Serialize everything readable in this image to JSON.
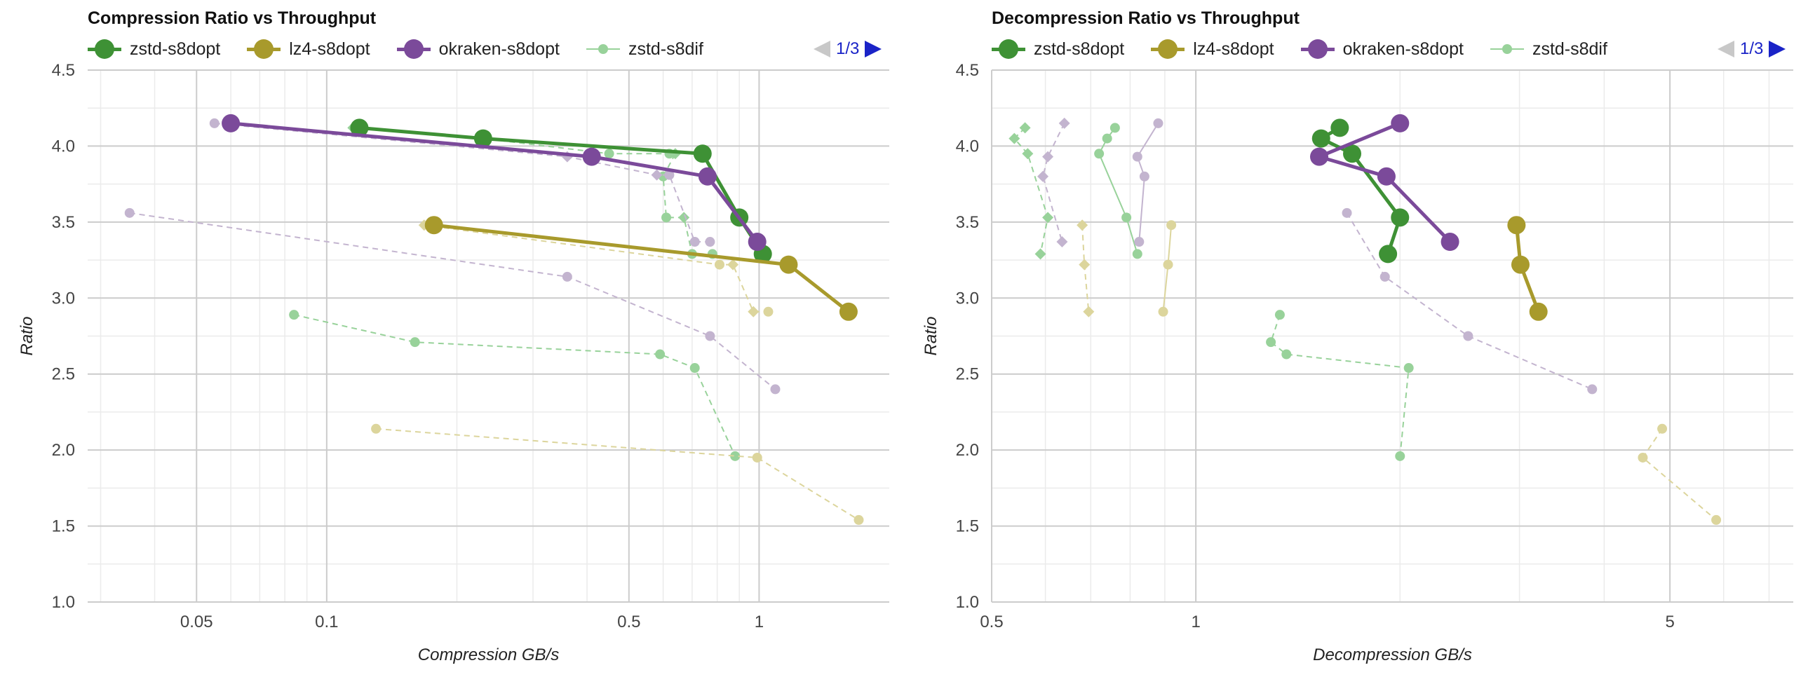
{
  "colors": {
    "zstd_opt": "#3e9135",
    "lz4_opt": "#a89a2c",
    "okraken_opt": "#7b4a9a",
    "zstd_dif": "#98d29a",
    "lz4_dif": "#dcd59c",
    "okraken_dif": "#c3b4cf",
    "grid_major": "#cccccc",
    "grid_minor": "#ebebeb",
    "pager_active": "#1a23c7",
    "pager_inactive": "#c8c8c8"
  },
  "pager_text": "1/3",
  "chart_data": [
    {
      "type": "scatter",
      "title": "Compression Ratio vs Throughput",
      "xlabel": "Compression GB/s",
      "ylabel": "Ratio",
      "xscale": "log",
      "xlim": [
        0.028,
        2.0
      ],
      "ylim": [
        1.0,
        4.5
      ],
      "x_ticks": [
        "0.05",
        "0.1",
        "0.5",
        "1"
      ],
      "x_tick_values": [
        0.05,
        0.1,
        0.5,
        1
      ],
      "y_ticks": [
        "1.0",
        "1.5",
        "2.0",
        "2.5",
        "3.0",
        "3.5",
        "4.0",
        "4.5"
      ],
      "y_tick_values": [
        1.0,
        1.5,
        2.0,
        2.5,
        3.0,
        3.5,
        4.0,
        4.5
      ],
      "legend": [
        "zstd-s8dopt",
        "lz4-s8dopt",
        "okraken-s8dopt",
        "zstd-s8dif"
      ],
      "legend_position": "top",
      "series": [
        {
          "name": "zstd-s8dif",
          "points": [
            [
              0.084,
              2.89
            ],
            [
              0.16,
              2.71
            ],
            [
              0.59,
              2.63
            ],
            [
              0.71,
              2.54
            ],
            [
              0.88,
              1.96
            ]
          ]
        },
        {
          "points": [
            [
              0.13,
              2.14
            ],
            [
              0.99,
              1.95
            ],
            [
              1.7,
              1.54
            ]
          ]
        },
        {
          "points": [
            [
              0.035,
              3.56
            ],
            [
              0.36,
              3.14
            ],
            [
              0.77,
              2.75
            ],
            [
              1.09,
              2.4
            ]
          ]
        },
        {
          "points": [
            [
              0.115,
              4.12
            ],
            [
              0.23,
              4.05
            ],
            [
              0.45,
              3.95
            ],
            [
              0.62,
              3.95
            ],
            [
              0.64,
              3.95
            ],
            [
              0.6,
              3.8
            ],
            [
              0.61,
              3.53
            ],
            [
              0.67,
              3.53
            ],
            [
              0.7,
              3.29
            ],
            [
              0.78,
              3.29
            ]
          ]
        },
        {
          "points": [
            [
              0.168,
              3.48
            ],
            [
              0.81,
              3.22
            ],
            [
              0.87,
              3.22
            ],
            [
              0.97,
              2.91
            ],
            [
              1.05,
              2.91
            ]
          ]
        },
        {
          "points": [
            [
              0.055,
              4.15
            ],
            [
              0.36,
              3.93
            ],
            [
              0.58,
              3.81
            ],
            [
              0.62,
              3.81
            ],
            [
              0.71,
              3.37
            ],
            [
              0.77,
              3.37
            ]
          ]
        },
        {
          "name": "zstd-s8dopt",
          "points": [
            [
              0.119,
              4.12
            ],
            [
              0.23,
              4.05
            ],
            [
              0.74,
              3.95
            ],
            [
              0.9,
              3.53
            ],
            [
              1.02,
              3.29
            ]
          ]
        },
        {
          "name": "lz4-s8dopt",
          "points": [
            [
              0.177,
              3.48
            ],
            [
              1.17,
              3.22
            ],
            [
              1.61,
              2.91
            ]
          ]
        },
        {
          "name": "okraken-s8dopt",
          "points": [
            [
              0.06,
              4.15
            ],
            [
              0.41,
              3.93
            ],
            [
              0.76,
              3.8
            ],
            [
              0.99,
              3.37
            ]
          ]
        }
      ]
    },
    {
      "type": "scatter",
      "title": "Decompression Ratio vs Throughput",
      "xlabel": "Decompression GB/s",
      "ylabel": "Ratio",
      "xscale": "log",
      "xlim": [
        0.5,
        7.6
      ],
      "ylim": [
        1.0,
        4.5
      ],
      "x_ticks": [
        "0.5",
        "1",
        "5"
      ],
      "x_tick_values": [
        0.5,
        1,
        5
      ],
      "y_ticks": [
        "1.0",
        "1.5",
        "2.0",
        "2.5",
        "3.0",
        "3.5",
        "4.0",
        "4.5"
      ],
      "y_tick_values": [
        1.0,
        1.5,
        2.0,
        2.5,
        3.0,
        3.5,
        4.0,
        4.5
      ],
      "legend": [
        "zstd-s8dopt",
        "lz4-s8dopt",
        "okraken-s8dopt",
        "zstd-s8dif"
      ],
      "legend_position": "top",
      "series": [
        {
          "name": "zstd-s8dif",
          "points": [
            [
              1.33,
              2.89
            ],
            [
              1.29,
              2.71
            ],
            [
              1.36,
              2.63
            ],
            [
              2.06,
              2.54
            ],
            [
              2.0,
              1.96
            ]
          ]
        },
        {
          "points": [
            [
              4.87,
              2.14
            ],
            [
              4.56,
              1.95
            ],
            [
              5.85,
              1.54
            ]
          ]
        },
        {
          "points": [
            [
              1.67,
              3.56
            ],
            [
              1.9,
              3.14
            ],
            [
              2.52,
              2.75
            ],
            [
              3.84,
              2.4
            ]
          ]
        },
        {
          "points": [
            [
              0.76,
              4.12
            ],
            [
              0.74,
              4.05
            ],
            [
              0.72,
              3.95
            ],
            [
              0.79,
              3.53
            ],
            [
              0.82,
              3.29
            ]
          ]
        },
        {
          "points": [
            [
              0.56,
              4.12
            ],
            [
              0.54,
              4.05
            ],
            [
              0.565,
              3.95
            ],
            [
              0.605,
              3.53
            ],
            [
              0.59,
              3.29
            ]
          ]
        },
        {
          "points": [
            [
              0.92,
              3.48
            ],
            [
              0.91,
              3.22
            ],
            [
              0.895,
              2.91
            ]
          ]
        },
        {
          "points": [
            [
              0.68,
              3.48
            ],
            [
              0.685,
              3.22
            ],
            [
              0.695,
              2.91
            ]
          ]
        },
        {
          "points": [
            [
              0.88,
              4.15
            ],
            [
              0.82,
              3.93
            ],
            [
              0.84,
              3.8
            ],
            [
              0.825,
              3.37
            ]
          ]
        },
        {
          "points": [
            [
              0.64,
              4.15
            ],
            [
              0.605,
              3.93
            ],
            [
              0.595,
              3.8
            ],
            [
              0.635,
              3.37
            ]
          ]
        },
        {
          "name": "zstd-s8dopt",
          "points": [
            [
              1.63,
              4.12
            ],
            [
              1.53,
              4.05
            ],
            [
              1.7,
              3.95
            ],
            [
              2.0,
              3.53
            ],
            [
              1.92,
              3.29
            ]
          ]
        },
        {
          "name": "lz4-s8dopt",
          "points": [
            [
              2.97,
              3.48
            ],
            [
              3.01,
              3.22
            ],
            [
              3.2,
              2.91
            ]
          ]
        },
        {
          "name": "okraken-s8dopt",
          "points": [
            [
              2.0,
              4.15
            ],
            [
              1.52,
              3.93
            ],
            [
              1.91,
              3.8
            ],
            [
              2.37,
              3.37
            ]
          ]
        }
      ]
    }
  ]
}
